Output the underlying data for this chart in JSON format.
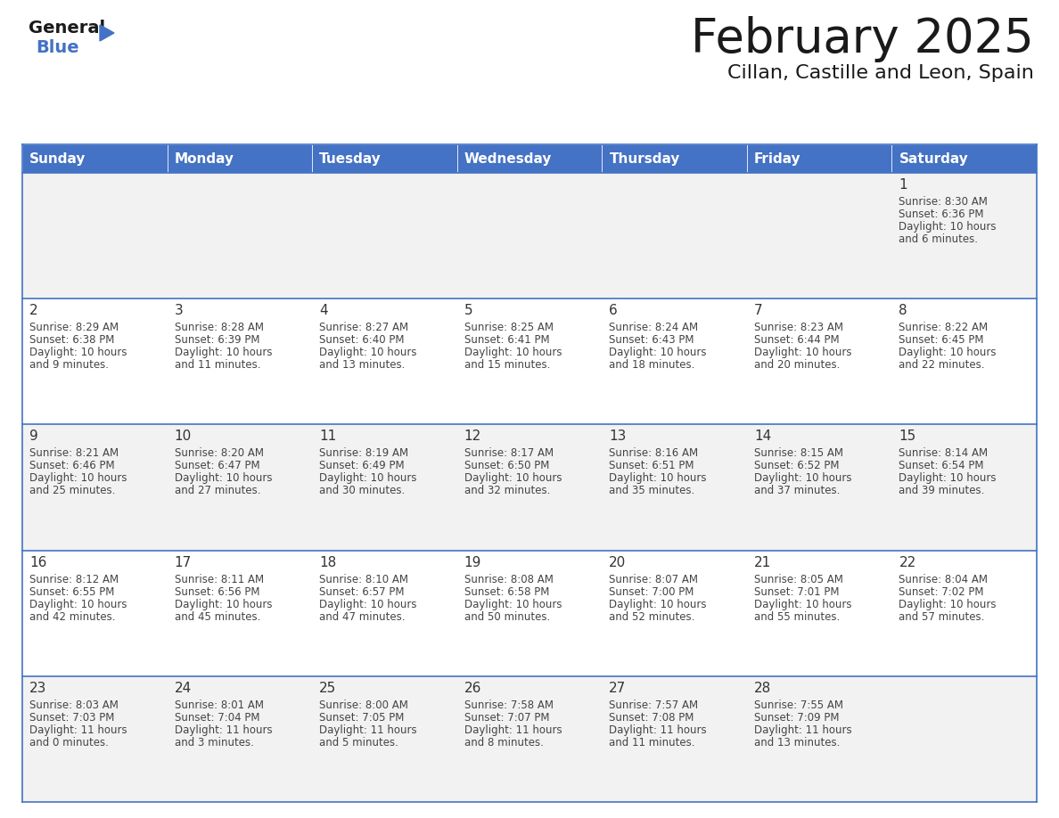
{
  "title": "February 2025",
  "subtitle": "Cillan, Castille and Leon, Spain",
  "header_bg": "#4472C4",
  "header_text_color": "#FFFFFF",
  "day_names": [
    "Sunday",
    "Monday",
    "Tuesday",
    "Wednesday",
    "Thursday",
    "Friday",
    "Saturday"
  ],
  "row_bg_odd": "#F2F2F2",
  "row_bg_even": "#FFFFFF",
  "border_color": "#4472C4",
  "day_num_color": "#333333",
  "cell_text_color": "#555555",
  "calendar_data": [
    [
      null,
      null,
      null,
      null,
      null,
      null,
      {
        "day": 1,
        "sunrise": "8:30 AM",
        "sunset": "6:36 PM",
        "daylight": "10 hours and 6 minutes."
      }
    ],
    [
      {
        "day": 2,
        "sunrise": "8:29 AM",
        "sunset": "6:38 PM",
        "daylight": "10 hours and 9 minutes."
      },
      {
        "day": 3,
        "sunrise": "8:28 AM",
        "sunset": "6:39 PM",
        "daylight": "10 hours and 11 minutes."
      },
      {
        "day": 4,
        "sunrise": "8:27 AM",
        "sunset": "6:40 PM",
        "daylight": "10 hours and 13 minutes."
      },
      {
        "day": 5,
        "sunrise": "8:25 AM",
        "sunset": "6:41 PM",
        "daylight": "10 hours and 15 minutes."
      },
      {
        "day": 6,
        "sunrise": "8:24 AM",
        "sunset": "6:43 PM",
        "daylight": "10 hours and 18 minutes."
      },
      {
        "day": 7,
        "sunrise": "8:23 AM",
        "sunset": "6:44 PM",
        "daylight": "10 hours and 20 minutes."
      },
      {
        "day": 8,
        "sunrise": "8:22 AM",
        "sunset": "6:45 PM",
        "daylight": "10 hours and 22 minutes."
      }
    ],
    [
      {
        "day": 9,
        "sunrise": "8:21 AM",
        "sunset": "6:46 PM",
        "daylight": "10 hours and 25 minutes."
      },
      {
        "day": 10,
        "sunrise": "8:20 AM",
        "sunset": "6:47 PM",
        "daylight": "10 hours and 27 minutes."
      },
      {
        "day": 11,
        "sunrise": "8:19 AM",
        "sunset": "6:49 PM",
        "daylight": "10 hours and 30 minutes."
      },
      {
        "day": 12,
        "sunrise": "8:17 AM",
        "sunset": "6:50 PM",
        "daylight": "10 hours and 32 minutes."
      },
      {
        "day": 13,
        "sunrise": "8:16 AM",
        "sunset": "6:51 PM",
        "daylight": "10 hours and 35 minutes."
      },
      {
        "day": 14,
        "sunrise": "8:15 AM",
        "sunset": "6:52 PM",
        "daylight": "10 hours and 37 minutes."
      },
      {
        "day": 15,
        "sunrise": "8:14 AM",
        "sunset": "6:54 PM",
        "daylight": "10 hours and 39 minutes."
      }
    ],
    [
      {
        "day": 16,
        "sunrise": "8:12 AM",
        "sunset": "6:55 PM",
        "daylight": "10 hours and 42 minutes."
      },
      {
        "day": 17,
        "sunrise": "8:11 AM",
        "sunset": "6:56 PM",
        "daylight": "10 hours and 45 minutes."
      },
      {
        "day": 18,
        "sunrise": "8:10 AM",
        "sunset": "6:57 PM",
        "daylight": "10 hours and 47 minutes."
      },
      {
        "day": 19,
        "sunrise": "8:08 AM",
        "sunset": "6:58 PM",
        "daylight": "10 hours and 50 minutes."
      },
      {
        "day": 20,
        "sunrise": "8:07 AM",
        "sunset": "7:00 PM",
        "daylight": "10 hours and 52 minutes."
      },
      {
        "day": 21,
        "sunrise": "8:05 AM",
        "sunset": "7:01 PM",
        "daylight": "10 hours and 55 minutes."
      },
      {
        "day": 22,
        "sunrise": "8:04 AM",
        "sunset": "7:02 PM",
        "daylight": "10 hours and 57 minutes."
      }
    ],
    [
      {
        "day": 23,
        "sunrise": "8:03 AM",
        "sunset": "7:03 PM",
        "daylight": "11 hours and 0 minutes."
      },
      {
        "day": 24,
        "sunrise": "8:01 AM",
        "sunset": "7:04 PM",
        "daylight": "11 hours and 3 minutes."
      },
      {
        "day": 25,
        "sunrise": "8:00 AM",
        "sunset": "7:05 PM",
        "daylight": "11 hours and 5 minutes."
      },
      {
        "day": 26,
        "sunrise": "7:58 AM",
        "sunset": "7:07 PM",
        "daylight": "11 hours and 8 minutes."
      },
      {
        "day": 27,
        "sunrise": "7:57 AM",
        "sunset": "7:08 PM",
        "daylight": "11 hours and 11 minutes."
      },
      {
        "day": 28,
        "sunrise": "7:55 AM",
        "sunset": "7:09 PM",
        "daylight": "11 hours and 13 minutes."
      },
      null
    ]
  ],
  "fig_width": 11.88,
  "fig_height": 9.18,
  "dpi": 100
}
